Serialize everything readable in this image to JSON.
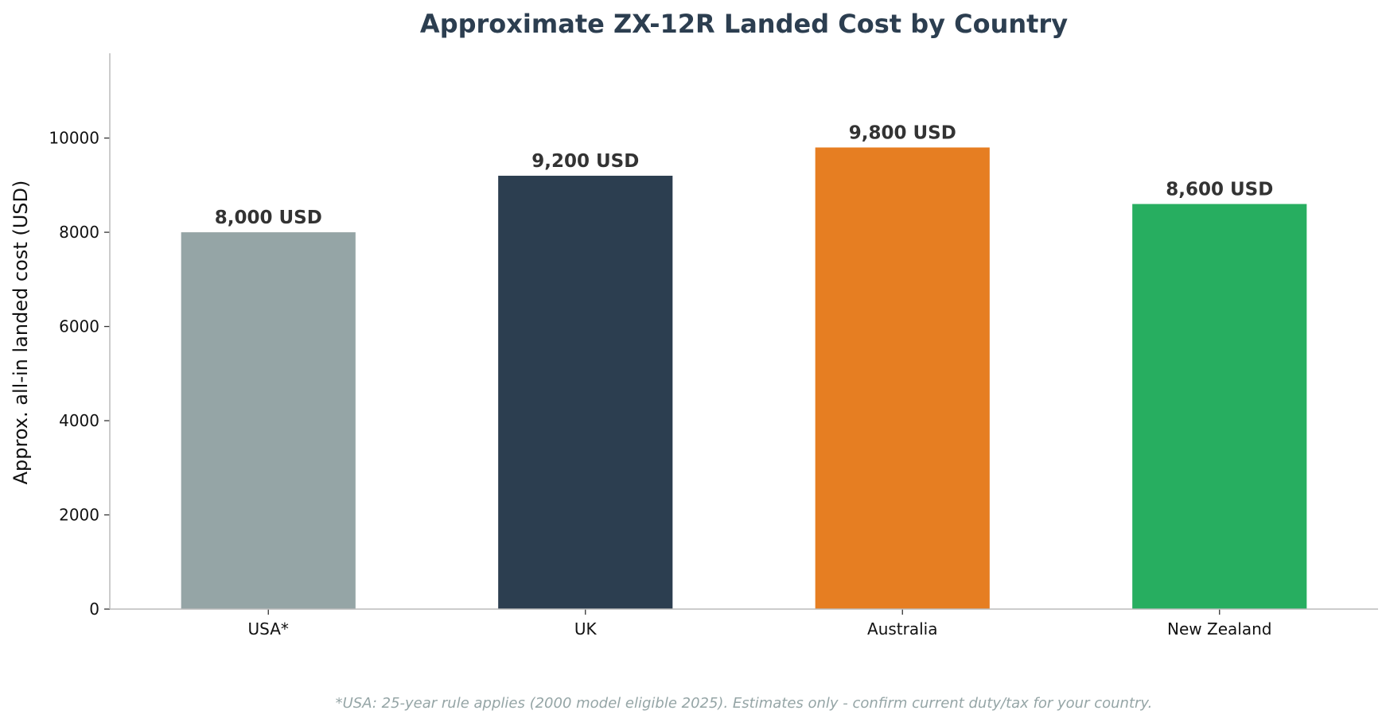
{
  "chart_data": {
    "type": "bar",
    "title": "Approximate ZX-12R Landed Cost by Country",
    "ylabel": "Approx. all-in landed cost (USD)",
    "xlabel": "",
    "categories": [
      "USA*",
      "UK",
      "Australia",
      "New Zealand"
    ],
    "values": [
      8000,
      9200,
      9800,
      8600
    ],
    "value_labels": [
      "8,000 USD",
      "9,200 USD",
      "9,800 USD",
      "8,600 USD"
    ],
    "colors": [
      "#95a5a6",
      "#2c3e50",
      "#e67e22",
      "#27ae60"
    ],
    "ylim": [
      0,
      11800
    ],
    "yticks": [
      0,
      2000,
      4000,
      6000,
      8000,
      10000
    ],
    "grid": false,
    "legend": "none",
    "footnote": "*USA: 25-year rule applies (2000 model eligible 2025). Estimates only - confirm current duty/tax for your country."
  }
}
